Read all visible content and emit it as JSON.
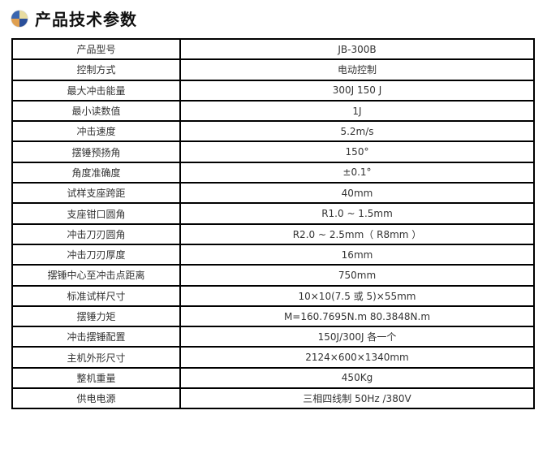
{
  "header": {
    "icon": "globe-icon",
    "title": "产品技术参数"
  },
  "specs": [
    {
      "label": "产品型号",
      "value": "JB-300B"
    },
    {
      "label": "控制方式",
      "value": "电动控制"
    },
    {
      "label": "最大冲击能量",
      "value": "300J 150 J"
    },
    {
      "label": "最小读数值",
      "value": "1J"
    },
    {
      "label": "冲击速度",
      "value": "5.2m/s"
    },
    {
      "label": "摆锤预扬角",
      "value": "150°"
    },
    {
      "label": "角度准确度",
      "value": "±0.1°"
    },
    {
      "label": "试样支座跨距",
      "value": "40mm"
    },
    {
      "label": "支座钳口圆角",
      "value": "R1.0 ~ 1.5mm"
    },
    {
      "label": "冲击刀刃圆角",
      "value": "R2.0 ~ 2.5mm（  R8mm ）"
    },
    {
      "label": "冲击刀刃厚度",
      "value": "16mm"
    },
    {
      "label": "摆锤中心至冲击点距离",
      "value": "750mm"
    },
    {
      "label": "标准试样尺寸",
      "value": "10×10(7.5 或 5)×55mm"
    },
    {
      "label": "摆锤力矩",
      "value": "M=160.7695N.m     80.3848N.m"
    },
    {
      "label": "冲击摆锤配置",
      "value": "150J/300J 各一个"
    },
    {
      "label": "主机外形尺寸",
      "value": "2124×600×1340mm"
    },
    {
      "label": "整机重量",
      "value": "450Kg"
    },
    {
      "label": "供电电源",
      "value": "三相四线制 50Hz /380V"
    }
  ]
}
